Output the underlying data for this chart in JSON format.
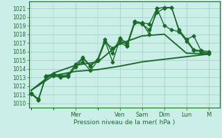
{
  "xlabel": "Pression niveau de la mer( hPa )",
  "background_color": "#cceee8",
  "grid_color": "#99ccbb",
  "line_color": "#1a6b2a",
  "ylim": [
    1009.5,
    1021.8
  ],
  "yticks": [
    1010,
    1011,
    1012,
    1013,
    1014,
    1015,
    1016,
    1017,
    1018,
    1019,
    1020,
    1021
  ],
  "xlim": [
    -0.1,
    8.5
  ],
  "x_day_labels": [
    "Mer",
    "Ven",
    "Sam",
    "Dim",
    "Lun",
    "M"
  ],
  "x_day_positions": [
    2.0,
    4.0,
    5.0,
    6.0,
    7.0,
    8.0
  ],
  "series": [
    {
      "x": [
        0,
        0.33,
        0.67,
        1.0,
        1.33,
        1.67,
        2.0,
        2.33,
        2.67,
        3.0,
        3.33,
        3.67,
        4.0,
        4.33,
        4.67,
        5.0,
        5.33,
        5.67,
        6.0,
        6.33,
        6.67,
        7.0,
        7.33,
        7.67,
        8.0
      ],
      "y": [
        1011.1,
        1010.4,
        1013.1,
        1013.3,
        1013.1,
        1013.2,
        1014.2,
        1015.2,
        1014.3,
        1015.0,
        1017.2,
        1014.8,
        1017.4,
        1016.7,
        1019.5,
        1019.3,
        1018.0,
        1021.0,
        1021.1,
        1021.1,
        1018.3,
        1017.2,
        1016.1,
        1016.0,
        1015.8
      ],
      "marker": "D",
      "markersize": 2.5,
      "linewidth": 1.0,
      "linestyle": "-"
    },
    {
      "x": [
        0,
        0.33,
        0.67,
        1.0,
        1.33,
        1.67,
        2.0,
        2.33,
        2.67,
        3.0,
        3.33,
        3.67,
        4.0,
        4.33,
        4.67,
        5.0,
        5.33,
        5.67,
        6.0,
        6.33,
        6.67,
        7.0,
        7.33,
        7.67,
        8.0
      ],
      "y": [
        1011.1,
        1010.4,
        1013.2,
        1013.4,
        1013.2,
        1013.3,
        1014.5,
        1015.3,
        1014.4,
        1015.1,
        1017.4,
        1015.8,
        1017.6,
        1016.9,
        1019.5,
        1019.3,
        1019.2,
        1021.0,
        1019.0,
        1018.5,
        1018.3,
        1017.4,
        1016.2,
        1016.1,
        1016.0
      ],
      "marker": "D",
      "markersize": 2.5,
      "linewidth": 1.0,
      "linestyle": "-"
    },
    {
      "x": [
        0,
        0.33,
        0.67,
        1.0,
        1.33,
        1.67,
        2.0,
        2.33,
        2.67,
        3.0,
        3.33,
        3.67,
        4.0,
        4.33,
        4.67,
        5.0,
        5.33,
        5.67,
        6.0,
        6.33,
        6.67,
        7.0,
        7.33,
        7.67,
        8.0
      ],
      "y": [
        1011.2,
        1010.5,
        1013.1,
        1013.2,
        1013.0,
        1013.1,
        1014.3,
        1014.8,
        1013.8,
        1014.9,
        1017.1,
        1016.4,
        1017.0,
        1016.6,
        1019.3,
        1019.2,
        1018.5,
        1020.5,
        1021.0,
        1021.1,
        1018.5,
        1017.4,
        1017.8,
        1016.0,
        1015.7
      ],
      "marker": "D",
      "markersize": 2.5,
      "linewidth": 1.0,
      "linestyle": "-"
    },
    {
      "x": [
        0,
        1.0,
        2.0,
        3.0,
        4.0,
        5.0,
        6.0,
        7.0,
        8.0
      ],
      "y": [
        1011.5,
        1013.5,
        1014.4,
        1014.8,
        1016.9,
        1017.8,
        1018.0,
        1015.8,
        1015.7
      ],
      "marker": null,
      "markersize": 0,
      "linewidth": 1.4,
      "linestyle": "-"
    },
    {
      "x": [
        0,
        1.0,
        2.0,
        3.0,
        4.0,
        5.0,
        6.0,
        7.0,
        8.0
      ],
      "y": [
        1011.5,
        1013.2,
        1013.7,
        1013.9,
        1014.3,
        1014.8,
        1015.1,
        1015.4,
        1015.7
      ],
      "marker": null,
      "markersize": 0,
      "linewidth": 1.4,
      "linestyle": "-"
    }
  ]
}
